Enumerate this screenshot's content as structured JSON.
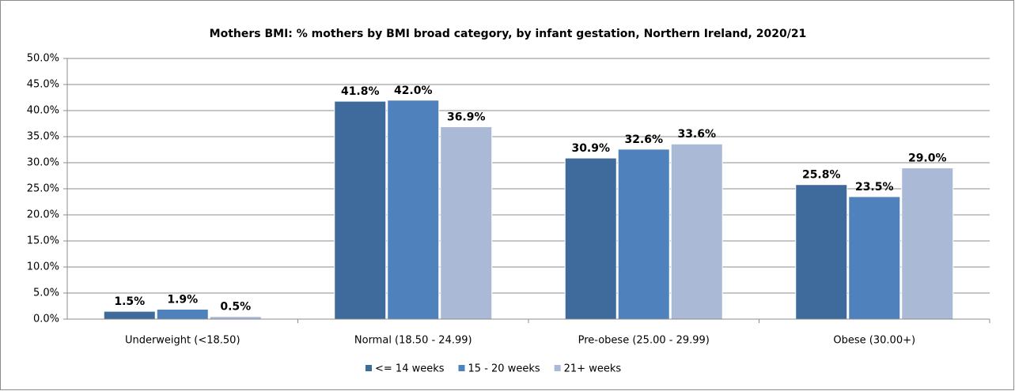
{
  "chart_data": {
    "type": "bar",
    "title": "Mothers BMI: % mothers by BMI broad category, by infant gestation, Northern Ireland, 2020/21",
    "categories": [
      "Underweight (<18.50)",
      "Normal (18.50 - 24.99)",
      "Pre-obese (25.00 - 29.99)",
      "Obese (30.00+)"
    ],
    "series": [
      {
        "name": "<= 14 weeks",
        "color": "#3e6a9c",
        "values": [
          1.5,
          41.8,
          30.9,
          25.8
        ],
        "value_labels": [
          "1.5%",
          "41.8%",
          "30.9%",
          "25.8%"
        ]
      },
      {
        "name": "15 - 20 weeks",
        "color": "#4f81bd",
        "values": [
          1.9,
          42.0,
          32.6,
          23.5
        ],
        "value_labels": [
          "1.9%",
          "42.0%",
          "32.6%",
          "23.5%"
        ]
      },
      {
        "name": "21+ weeks",
        "color": "#a9b9d6",
        "values": [
          0.5,
          36.9,
          33.6,
          29.0
        ],
        "value_labels": [
          "0.5%",
          "36.9%",
          "33.6%",
          "29.0%"
        ]
      }
    ],
    "ylim": [
      0,
      50
    ],
    "yticks": [
      {
        "value": 0,
        "label": "0.0%"
      },
      {
        "value": 5,
        "label": "5.0%"
      },
      {
        "value": 10,
        "label": "10.0%"
      },
      {
        "value": 15,
        "label": "15.0%"
      },
      {
        "value": 20,
        "label": "20.0%"
      },
      {
        "value": 25,
        "label": "25.0%"
      },
      {
        "value": 30,
        "label": "30.0%"
      },
      {
        "value": 35,
        "label": "35.0%"
      },
      {
        "value": 40,
        "label": "40.0%"
      },
      {
        "value": 45,
        "label": "45.0%"
      },
      {
        "value": 50,
        "label": "50.0%"
      }
    ],
    "grid": true,
    "legend": "bottom"
  }
}
